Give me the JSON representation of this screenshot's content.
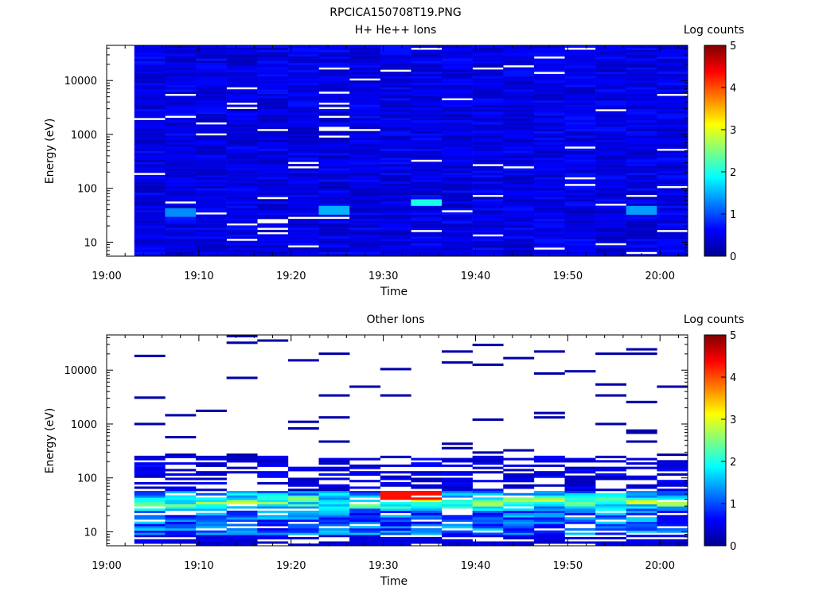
{
  "figure_title": "RPCICA150708T19.PNG",
  "colorbar": {
    "label": "Log counts",
    "ticks": [
      "0",
      "1",
      "2",
      "3",
      "4",
      "5"
    ],
    "range": [
      0,
      5
    ],
    "colormap": [
      "#00008f",
      "#0000ff",
      "#00ffff",
      "#ffff00",
      "#ff0000",
      "#800000"
    ]
  },
  "chart_data": [
    {
      "type": "heatmap",
      "title": "H+ He++ Ions",
      "xlabel": "Time",
      "ylabel": "Energy (eV)",
      "x_ticks": [
        "19:00",
        "19:10",
        "19:20",
        "19:30",
        "19:40",
        "19:50",
        "20:00"
      ],
      "y_ticks": [
        "10",
        "100",
        "1000",
        "10000"
      ],
      "xlim": [
        "19:00",
        "20:03"
      ],
      "ylim": [
        5.5,
        45000
      ],
      "y_scale": "log",
      "data_start": "19:03",
      "data_end": "20:00",
      "time_bins": 18,
      "energy_bins": 96,
      "value_range": [
        0,
        5
      ],
      "typical_level": 0.6,
      "notable_cells": [
        {
          "time": "19:33",
          "energy": 55,
          "value": 2.0
        },
        {
          "time": "19:08",
          "energy": 35,
          "value": 1.3
        },
        {
          "time": "19:24",
          "energy": 38,
          "value": 1.5
        },
        {
          "time": "19:59",
          "energy": 38,
          "value": 1.4
        }
      ]
    },
    {
      "type": "heatmap",
      "title": "Other Ions",
      "xlabel": "Time",
      "ylabel": "Energy (eV)",
      "x_ticks": [
        "19:00",
        "19:10",
        "19:20",
        "19:30",
        "19:40",
        "19:50",
        "20:00"
      ],
      "y_ticks": [
        "10",
        "100",
        "1000",
        "10000"
      ],
      "xlim": [
        "19:00",
        "20:03"
      ],
      "ylim": [
        5.5,
        45000
      ],
      "y_scale": "log",
      "data_start": "19:03",
      "data_end": "20:00",
      "time_bins": 18,
      "energy_bins": 96,
      "value_range": [
        0,
        5
      ],
      "peak_band_energy": [
        25,
        60
      ],
      "peak_value": 4.3,
      "peak_time": "19:33"
    }
  ]
}
